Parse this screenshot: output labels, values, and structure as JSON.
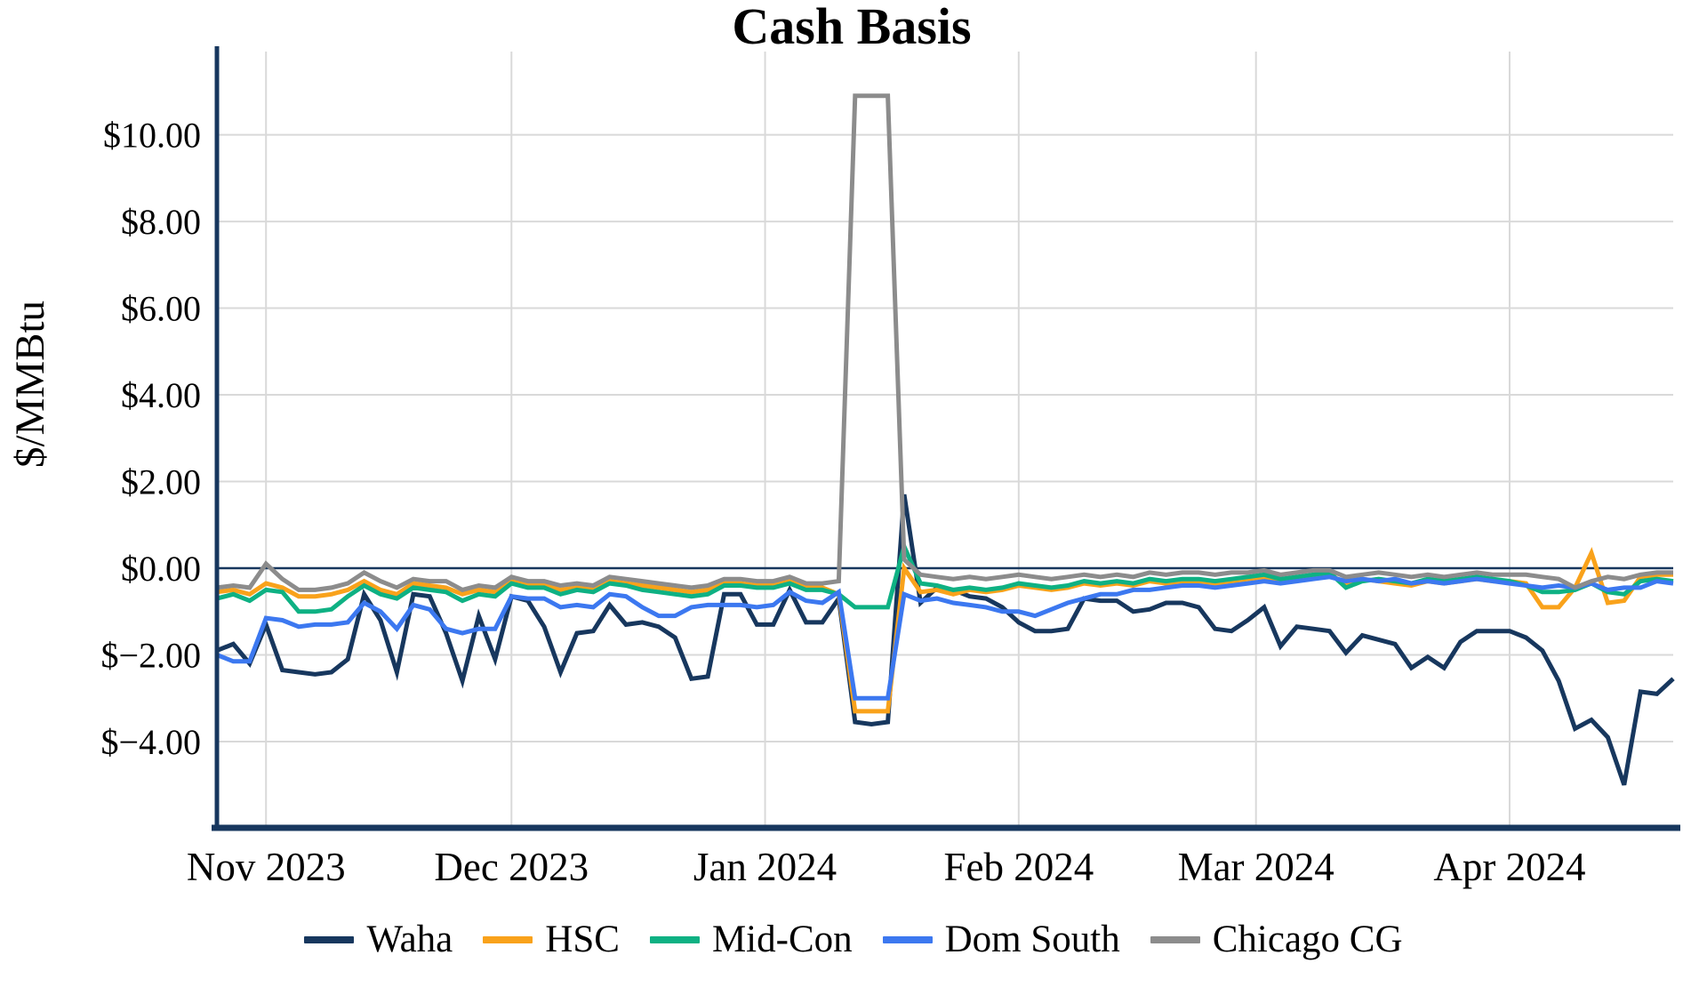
{
  "title": "Cash Basis",
  "colors": {
    "axis": "#17375E",
    "grid": "#D9D9D9",
    "background": "#FFFFFF",
    "waha": "#17375E",
    "hsc": "#F9A21B",
    "midcon": "#0EB183",
    "domsouth": "#3C78F0",
    "chicago": "#8C8C8C"
  },
  "y_axis": {
    "label": "$/MMBtu",
    "ticks": [
      "$10.00",
      "$8.00",
      "$6.00",
      "$4.00",
      "$2.00",
      "$0.00",
      "$−2.00",
      "$−4.00"
    ],
    "tick_values": [
      10,
      8,
      6,
      4,
      2,
      0,
      -2,
      -4
    ]
  },
  "x_axis": {
    "labels": [
      "Nov 2023",
      "Dec 2023",
      "Jan 2024",
      "Feb 2024",
      "Mar 2024",
      "Apr 2024"
    ],
    "label_days": [
      6,
      36,
      67,
      98,
      127,
      158
    ],
    "total_days": 178
  },
  "chart_data": {
    "type": "line",
    "title": "Cash Basis",
    "ylabel": "$/MMBtu",
    "ylim": [
      -5.97,
      11.92
    ],
    "x_range": [
      "Nov 2023",
      "Apr 2024"
    ],
    "grid": true,
    "legend_position": "bottom",
    "zero_line": true,
    "sample_interval_days": 2,
    "series": [
      {
        "name": "Waha",
        "color": "#17375E",
        "values": [
          -1.9,
          -1.75,
          -2.2,
          -1.3,
          -2.35,
          -2.4,
          -2.45,
          -2.4,
          -2.1,
          -0.6,
          -1.2,
          -2.4,
          -0.6,
          -0.65,
          -1.5,
          -2.6,
          -1.1,
          -2.1,
          -0.65,
          -0.75,
          -1.35,
          -2.4,
          -1.5,
          -1.45,
          -0.85,
          -1.3,
          -1.25,
          -1.35,
          -1.6,
          -2.55,
          -2.5,
          -0.6,
          -0.6,
          -1.3,
          -1.3,
          -0.5,
          -1.25,
          -1.25,
          -0.7,
          -3.55,
          -3.6,
          -3.55,
          1.7,
          -0.8,
          -0.45,
          -0.5,
          -0.65,
          -0.7,
          -0.9,
          -1.25,
          -1.45,
          -1.45,
          -1.4,
          -0.7,
          -0.75,
          -0.75,
          -1.0,
          -0.95,
          -0.8,
          -0.8,
          -0.9,
          -1.4,
          -1.45,
          -1.2,
          -0.9,
          -1.8,
          -1.35,
          -1.4,
          -1.45,
          -1.95,
          -1.55,
          -1.65,
          -1.75,
          -2.3,
          -2.05,
          -2.3,
          -1.7,
          -1.45,
          -1.45,
          -1.45,
          -1.6,
          -1.9,
          -2.6,
          -3.7,
          -3.5,
          -3.9,
          -5.0,
          -2.85,
          -2.9,
          -2.55
        ]
      },
      {
        "name": "HSC",
        "color": "#F9A21B",
        "values": [
          -0.55,
          -0.5,
          -0.6,
          -0.35,
          -0.45,
          -0.65,
          -0.65,
          -0.6,
          -0.5,
          -0.3,
          -0.5,
          -0.6,
          -0.35,
          -0.4,
          -0.45,
          -0.6,
          -0.5,
          -0.55,
          -0.3,
          -0.35,
          -0.35,
          -0.5,
          -0.45,
          -0.5,
          -0.3,
          -0.35,
          -0.4,
          -0.45,
          -0.5,
          -0.55,
          -0.5,
          -0.35,
          -0.35,
          -0.4,
          -0.4,
          -0.3,
          -0.45,
          -0.45,
          -0.6,
          -3.3,
          -3.3,
          -3.3,
          0.0,
          -0.55,
          -0.5,
          -0.6,
          -0.5,
          -0.55,
          -0.5,
          -0.4,
          -0.45,
          -0.5,
          -0.45,
          -0.35,
          -0.4,
          -0.35,
          -0.4,
          -0.3,
          -0.35,
          -0.3,
          -0.3,
          -0.35,
          -0.3,
          -0.25,
          -0.2,
          -0.3,
          -0.25,
          -0.2,
          -0.15,
          -0.35,
          -0.25,
          -0.3,
          -0.35,
          -0.4,
          -0.3,
          -0.35,
          -0.3,
          -0.25,
          -0.3,
          -0.3,
          -0.35,
          -0.9,
          -0.9,
          -0.45,
          0.35,
          -0.8,
          -0.75,
          -0.2,
          -0.15,
          -0.15
        ]
      },
      {
        "name": "Mid-Con",
        "color": "#0EB183",
        "values": [
          -0.7,
          -0.6,
          -0.75,
          -0.5,
          -0.55,
          -1.0,
          -1.0,
          -0.95,
          -0.65,
          -0.4,
          -0.6,
          -0.7,
          -0.45,
          -0.5,
          -0.55,
          -0.75,
          -0.6,
          -0.65,
          -0.35,
          -0.45,
          -0.45,
          -0.6,
          -0.5,
          -0.55,
          -0.35,
          -0.4,
          -0.5,
          -0.55,
          -0.6,
          -0.65,
          -0.6,
          -0.4,
          -0.4,
          -0.45,
          -0.45,
          -0.35,
          -0.5,
          -0.5,
          -0.6,
          -0.9,
          -0.9,
          -0.9,
          0.5,
          -0.35,
          -0.4,
          -0.5,
          -0.45,
          -0.5,
          -0.45,
          -0.35,
          -0.4,
          -0.45,
          -0.4,
          -0.3,
          -0.35,
          -0.3,
          -0.35,
          -0.25,
          -0.3,
          -0.25,
          -0.25,
          -0.3,
          -0.25,
          -0.2,
          -0.15,
          -0.25,
          -0.2,
          -0.15,
          -0.1,
          -0.45,
          -0.3,
          -0.25,
          -0.3,
          -0.35,
          -0.25,
          -0.3,
          -0.25,
          -0.2,
          -0.25,
          -0.3,
          -0.4,
          -0.55,
          -0.55,
          -0.5,
          -0.35,
          -0.55,
          -0.6,
          -0.3,
          -0.25,
          -0.3
        ]
      },
      {
        "name": "Dom South",
        "color": "#3C78F0",
        "values": [
          -2.0,
          -2.15,
          -2.15,
          -1.15,
          -1.2,
          -1.35,
          -1.3,
          -1.3,
          -1.25,
          -0.8,
          -1.0,
          -1.4,
          -0.85,
          -0.95,
          -1.4,
          -1.5,
          -1.4,
          -1.4,
          -0.65,
          -0.7,
          -0.7,
          -0.9,
          -0.85,
          -0.9,
          -0.6,
          -0.65,
          -0.9,
          -1.1,
          -1.1,
          -0.9,
          -0.85,
          -0.85,
          -0.85,
          -0.9,
          -0.85,
          -0.55,
          -0.75,
          -0.8,
          -0.55,
          -3.0,
          -3.0,
          -3.0,
          -0.6,
          -0.75,
          -0.7,
          -0.8,
          -0.85,
          -0.9,
          -1.0,
          -1.0,
          -1.1,
          -0.95,
          -0.8,
          -0.7,
          -0.6,
          -0.6,
          -0.5,
          -0.5,
          -0.45,
          -0.4,
          -0.4,
          -0.45,
          -0.4,
          -0.35,
          -0.3,
          -0.35,
          -0.3,
          -0.25,
          -0.2,
          -0.3,
          -0.25,
          -0.3,
          -0.25,
          -0.35,
          -0.3,
          -0.35,
          -0.3,
          -0.25,
          -0.3,
          -0.35,
          -0.4,
          -0.45,
          -0.4,
          -0.45,
          -0.35,
          -0.5,
          -0.45,
          -0.45,
          -0.3,
          -0.35
        ]
      },
      {
        "name": "Chicago CG",
        "color": "#8C8C8C",
        "values": [
          -0.45,
          -0.4,
          -0.45,
          0.1,
          -0.25,
          -0.5,
          -0.5,
          -0.45,
          -0.35,
          -0.1,
          -0.3,
          -0.45,
          -0.25,
          -0.3,
          -0.3,
          -0.5,
          -0.4,
          -0.45,
          -0.2,
          -0.3,
          -0.3,
          -0.4,
          -0.35,
          -0.4,
          -0.2,
          -0.25,
          -0.3,
          -0.35,
          -0.4,
          -0.45,
          -0.4,
          -0.25,
          -0.25,
          -0.3,
          -0.3,
          -0.2,
          -0.35,
          -0.35,
          -0.3,
          10.9,
          10.9,
          10.9,
          0.2,
          -0.15,
          -0.2,
          -0.25,
          -0.2,
          -0.25,
          -0.2,
          -0.15,
          -0.2,
          -0.25,
          -0.2,
          -0.15,
          -0.2,
          -0.15,
          -0.2,
          -0.1,
          -0.15,
          -0.1,
          -0.1,
          -0.15,
          -0.1,
          -0.1,
          -0.05,
          -0.15,
          -0.1,
          -0.05,
          -0.05,
          -0.2,
          -0.15,
          -0.1,
          -0.15,
          -0.2,
          -0.15,
          -0.2,
          -0.15,
          -0.1,
          -0.15,
          -0.15,
          -0.15,
          -0.2,
          -0.25,
          -0.45,
          -0.3,
          -0.2,
          -0.25,
          -0.15,
          -0.1,
          -0.1
        ]
      }
    ]
  }
}
